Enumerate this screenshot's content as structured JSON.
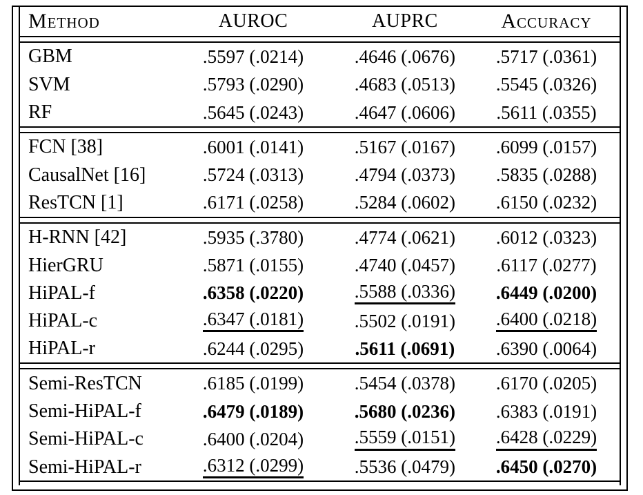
{
  "colors": {
    "text": "#000000",
    "border": "#000000",
    "background": "#ffffff"
  },
  "table": {
    "columns": [
      "Method",
      "AUROC",
      "AUPRC",
      "Accuracy"
    ],
    "groups": [
      {
        "rows": [
          {
            "method": "GBM",
            "cells": [
              {
                "text": ".5597 (.0214)",
                "style": "normal"
              },
              {
                "text": ".4646 (.0676)",
                "style": "normal"
              },
              {
                "text": ".5717 (.0361)",
                "style": "normal"
              }
            ]
          },
          {
            "method": "SVM",
            "cells": [
              {
                "text": ".5793 (.0290)",
                "style": "normal"
              },
              {
                "text": ".4683 (.0513)",
                "style": "normal"
              },
              {
                "text": ".5545 (.0326)",
                "style": "normal"
              }
            ]
          },
          {
            "method": "RF",
            "cells": [
              {
                "text": ".5645 (.0243)",
                "style": "normal"
              },
              {
                "text": ".4647 (.0606)",
                "style": "normal"
              },
              {
                "text": ".5611 (.0355)",
                "style": "normal"
              }
            ]
          }
        ]
      },
      {
        "rows": [
          {
            "method": "FCN [38]",
            "cells": [
              {
                "text": ".6001 (.0141)",
                "style": "normal"
              },
              {
                "text": ".5167 (.0167)",
                "style": "normal"
              },
              {
                "text": ".6099 (.0157)",
                "style": "normal"
              }
            ]
          },
          {
            "method": "CausalNet [16]",
            "cells": [
              {
                "text": ".5724 (.0313)",
                "style": "normal"
              },
              {
                "text": ".4794 (.0373)",
                "style": "normal"
              },
              {
                "text": ".5835 (.0288)",
                "style": "normal"
              }
            ]
          },
          {
            "method": "ResTCN [1]",
            "cells": [
              {
                "text": ".6171 (.0258)",
                "style": "normal"
              },
              {
                "text": ".5284 (.0602)",
                "style": "normal"
              },
              {
                "text": ".6150 (.0232)",
                "style": "normal"
              }
            ]
          }
        ]
      },
      {
        "rows": [
          {
            "method": "H-RNN [42]",
            "cells": [
              {
                "text": ".5935 (.3780)",
                "style": "normal"
              },
              {
                "text": ".4774 (.0621)",
                "style": "normal"
              },
              {
                "text": ".6012 (.0323)",
                "style": "normal"
              }
            ]
          },
          {
            "method": "HierGRU",
            "cells": [
              {
                "text": ".5871 (.0155)",
                "style": "normal"
              },
              {
                "text": ".4740 (.0457)",
                "style": "normal"
              },
              {
                "text": ".6117 (.0277)",
                "style": "normal"
              }
            ]
          },
          {
            "method": "HiPAL-f",
            "cells": [
              {
                "text": ".6358 (.0220)",
                "style": "bold"
              },
              {
                "text": ".5588 (.0336)",
                "style": "underline"
              },
              {
                "text": ".6449 (.0200)",
                "style": "bold"
              }
            ]
          },
          {
            "method": "HiPAL-c",
            "cells": [
              {
                "text": ".6347 (.0181)",
                "style": "underline"
              },
              {
                "text": ".5502 (.0191)",
                "style": "normal"
              },
              {
                "text": ".6400 (.0218)",
                "style": "underline"
              }
            ]
          },
          {
            "method": "HiPAL-r",
            "cells": [
              {
                "text": ".6244 (.0295)",
                "style": "normal"
              },
              {
                "text": ".5611 (.0691)",
                "style": "bold"
              },
              {
                "text": ".6390 (.0064)",
                "style": "normal"
              }
            ]
          }
        ]
      },
      {
        "rows": [
          {
            "method": "Semi-ResTCN",
            "cells": [
              {
                "text": ".6185 (.0199)",
                "style": "normal"
              },
              {
                "text": ".5454 (.0378)",
                "style": "normal"
              },
              {
                "text": ".6170 (.0205)",
                "style": "normal"
              }
            ]
          },
          {
            "method": "Semi-HiPAL-f",
            "cells": [
              {
                "text": ".6479 (.0189)",
                "style": "bold"
              },
              {
                "text": ".5680 (.0236)",
                "style": "bold"
              },
              {
                "text": ".6383 (.0191)",
                "style": "normal"
              }
            ]
          },
          {
            "method": "Semi-HiPAL-c",
            "cells": [
              {
                "text": ".6400 (.0204)",
                "style": "normal"
              },
              {
                "text": ".5559 (.0151)",
                "style": "underline"
              },
              {
                "text": ".6428 (.0229)",
                "style": "underline"
              }
            ]
          },
          {
            "method": "Semi-HiPAL-r",
            "cells": [
              {
                "text": ".6312 (.0299)",
                "style": "underline"
              },
              {
                "text": ".5536 (.0479)",
                "style": "normal"
              },
              {
                "text": ".6450 (.0270)",
                "style": "bold"
              }
            ]
          }
        ]
      }
    ]
  }
}
